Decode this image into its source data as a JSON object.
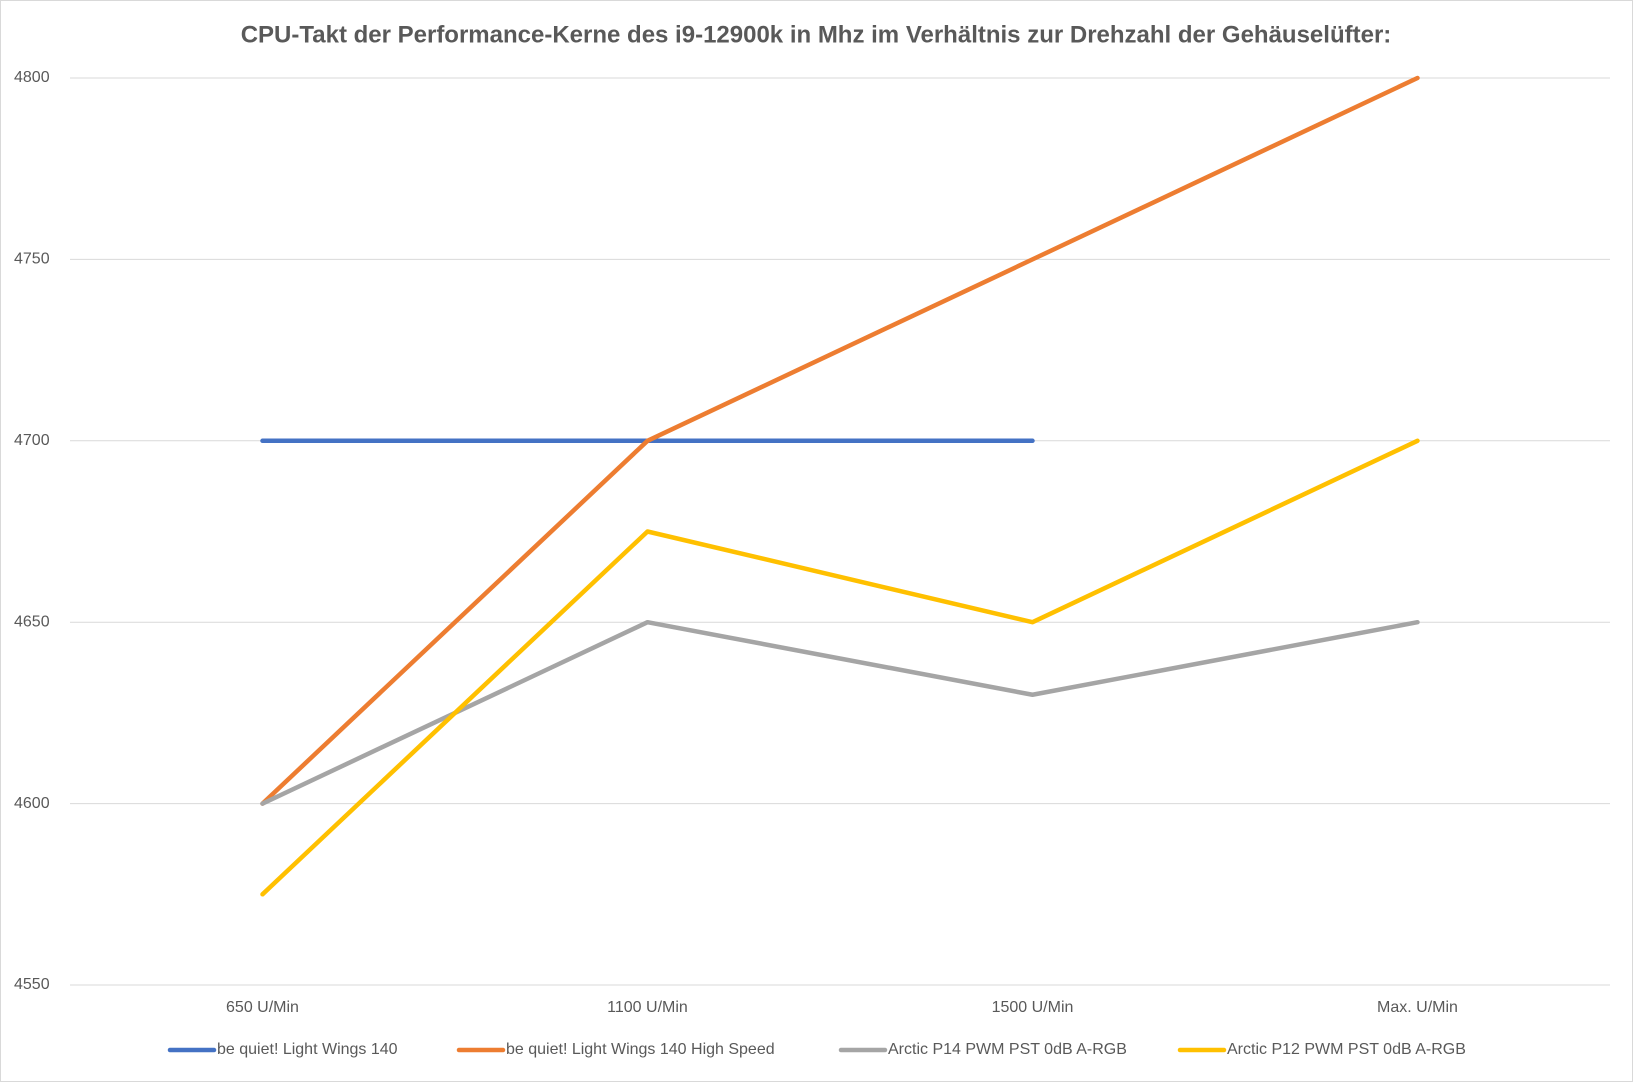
{
  "chart_data": {
    "type": "line",
    "title": "CPU-Takt der Performance-Kerne des i9-12900k in Mhz im Verhältnis zur Drehzahl der Gehäuselüfter:",
    "categories": [
      "650 U/Min",
      "1100 U/Min",
      "1500 U/Min",
      "Max. U/Min"
    ],
    "series": [
      {
        "name": "be quiet! Light Wings 140",
        "color": "#4472c4",
        "values": [
          4700,
          4700,
          4700,
          null
        ]
      },
      {
        "name": "be quiet! Light Wings 140 High Speed",
        "color": "#ed7d31",
        "values": [
          4600,
          4700,
          4750,
          4800
        ]
      },
      {
        "name": "Arctic P14 PWM PST 0dB A-RGB",
        "color": "#a5a5a5",
        "values": [
          4600,
          4650,
          4630,
          4650
        ]
      },
      {
        "name": "Arctic P12 PWM PST 0dB A-RGB",
        "color": "#ffc000",
        "values": [
          4575,
          4675,
          4650,
          4700
        ]
      }
    ],
    "ylim": [
      4550,
      4800
    ],
    "yticks": [
      4550,
      4600,
      4650,
      4700,
      4750,
      4800
    ],
    "grid": true,
    "legend": "bottom"
  }
}
